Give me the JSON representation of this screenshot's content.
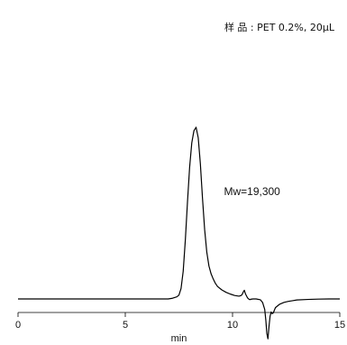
{
  "sample": {
    "label": "样 品 : PET 0.2%, 20µL"
  },
  "chart_data": {
    "type": "line",
    "title": "",
    "xlabel": "min",
    "ylabel": "",
    "xlim": [
      0,
      15
    ],
    "ylim": [
      -0.24,
      1.0
    ],
    "grid": false,
    "legend": "none",
    "x_ticks": [
      0,
      5,
      10,
      15
    ],
    "annotations": [
      {
        "text": "Mw=19,300",
        "x": 9.6,
        "y": 0.6
      }
    ],
    "series": [
      {
        "color": "#000000",
        "x": [
          0,
          2,
          4,
          6,
          7.0,
          7.2,
          7.4,
          7.5,
          7.6,
          7.7,
          7.8,
          7.9,
          8.0,
          8.1,
          8.2,
          8.3,
          8.4,
          8.5,
          8.6,
          8.7,
          8.8,
          8.9,
          9.0,
          9.1,
          9.2,
          9.3,
          9.5,
          9.7,
          9.9,
          10.1,
          10.3,
          10.4,
          10.45,
          10.5,
          10.55,
          10.6,
          10.7,
          10.75,
          10.8,
          10.85,
          10.95,
          11.1,
          11.3,
          11.4,
          11.5,
          11.55,
          11.6,
          11.65,
          11.7,
          11.75,
          11.8,
          11.85,
          11.9,
          11.95,
          12.0,
          12.2,
          12.4,
          12.6,
          12.8,
          13.0,
          13.5,
          14.0,
          14.5,
          15.0
        ],
        "y": [
          0,
          0,
          0,
          0,
          0,
          0.004,
          0.012,
          0.022,
          0.06,
          0.16,
          0.34,
          0.56,
          0.76,
          0.9,
          0.97,
          0.99,
          0.93,
          0.78,
          0.58,
          0.4,
          0.27,
          0.19,
          0.145,
          0.115,
          0.09,
          0.072,
          0.052,
          0.038,
          0.028,
          0.02,
          0.016,
          0.02,
          0.026,
          0.04,
          0.05,
          0.03,
          0.006,
          0.0,
          -0.004,
          -0.002,
          0.0,
          0.0,
          -0.005,
          -0.02,
          -0.06,
          -0.12,
          -0.2,
          -0.23,
          -0.16,
          -0.1,
          -0.075,
          -0.085,
          -0.08,
          -0.065,
          -0.05,
          -0.03,
          -0.02,
          -0.014,
          -0.01,
          -0.006,
          -0.003,
          -0.001,
          0,
          0
        ]
      }
    ]
  }
}
